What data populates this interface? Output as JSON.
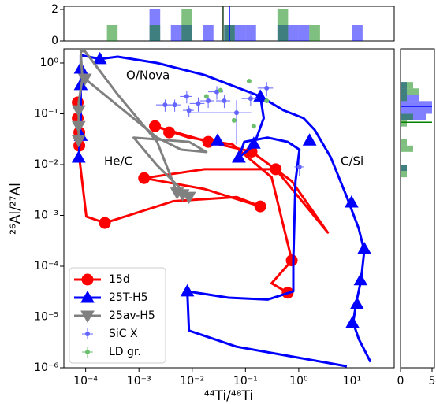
{
  "chart_data": [
    {
      "type": "line",
      "x_label": "⁴⁴Ti/⁴⁸Ti",
      "y_label": "²⁶Al/²⁷Al",
      "log_x": true,
      "log_y": true,
      "xlim": [
        3.9e-05,
        62
      ],
      "ylim": [
        1e-06,
        1.9
      ],
      "xticks": [
        {
          "value": 0.0001,
          "label": "10⁻⁴"
        },
        {
          "value": 0.001,
          "label": "10⁻³"
        },
        {
          "value": 0.01,
          "label": "10⁻²"
        },
        {
          "value": 0.1,
          "label": "10⁻¹"
        },
        {
          "value": 1,
          "label": "10⁰"
        },
        {
          "value": 10,
          "label": "10¹"
        }
      ],
      "yticks": [
        {
          "value": 1e-06,
          "label": "10⁻⁶"
        },
        {
          "value": 1e-05,
          "label": "10⁻⁵"
        },
        {
          "value": 0.0001,
          "label": "10⁻⁴"
        },
        {
          "value": 0.001,
          "label": "10⁻³"
        },
        {
          "value": 0.01,
          "label": "10⁻²"
        },
        {
          "value": 0.1,
          "label": "10⁻¹"
        },
        {
          "value": 1,
          "label": "10⁰"
        }
      ],
      "annotations": [
        "O/Nova",
        "He/C",
        "C/Si"
      ],
      "legend": "lower left",
      "series": [
        {
          "name": "15d",
          "color": "#ff0000",
          "style": "line",
          "marker": "circle",
          "x": [
            7.4e-05,
            7.6e-05,
            0.000103,
            0.00023,
            0.0044,
            0.068,
            0.19,
            0.017,
            0.00125,
            0.017,
            0.37,
            3.5,
            0.74,
            0.13,
            0.02,
            0.002,
            0.0087,
            0.057,
            0.31,
            0.74,
            0.31,
            0.62
          ],
          "values": [
            0.2,
            0.0138,
            0.00095,
            0.00071,
            0.0019,
            0.0023,
            0.0015,
            0.0033,
            0.0054,
            0.0081,
            0.0081,
            0.00046,
            0.0047,
            0.018,
            0.028,
            0.057,
            0.034,
            0.025,
            0.0056,
            0.00013,
            4.6e-05,
            3e-05
          ],
          "marker_x": [
            7.1e-05,
            7.1e-05,
            7.6e-05,
            7.6e-05,
            0.00023,
            0.00125,
            0.002,
            0.0037,
            0.02,
            0.13,
            0.37,
            0.19,
            0.74,
            0.62
          ],
          "marker_values": [
            0.168,
            0.082,
            0.043,
            0.0236,
            0.00071,
            0.0054,
            0.057,
            0.043,
            0.028,
            0.018,
            0.0081,
            0.0015,
            0.00013,
            3e-05
          ]
        },
        {
          "name": "25T-H5",
          "color": "#0000ff",
          "style": "line",
          "marker": "triangle-up",
          "x": [
            7.4e-05,
            8.1e-05,
            8.1e-05,
            0.000185,
            0.0004,
            0.0022,
            0.017,
            0.19,
            0.52,
            1.23,
            2.0,
            4.0,
            8.0,
            13.4,
            17,
            14.8,
            12,
            10.5,
            13.4,
            22.3,
            null,
            0.19,
            0.22,
            0.143,
            0.075,
            0.095,
            0.26,
            0.62,
            1.03,
            0.87,
            0.79,
            0.79,
            0.26,
            0.048,
            0.0081,
            0.0087,
            0.068,
            8.0
          ],
          "values": [
            0.0115,
            0.082,
            1.43,
            1.2,
            1.33,
            1.0,
            0.58,
            0.22,
            0.117,
            0.082,
            0.048,
            0.0138,
            0.0023,
            0.00055,
            0.0002,
            5.4e-05,
            1.9e-05,
            7.7e-06,
            3.7e-06,
            1.3e-06,
            null,
            0.22,
            0.082,
            0.0236,
            0.0138,
            0.028,
            0.034,
            0.028,
            0.0197,
            0.0047,
            0.00013,
            3.2e-05,
            2.2e-05,
            2.4e-05,
            3.2e-05,
            5.4e-06,
            2.6e-06,
            1.07e-06
          ],
          "marker_x": [
            0.000185,
            8.1e-05,
            8.1e-05,
            8.1e-05,
            7.4e-05,
            0.19,
            0.075,
            0.143,
            0.03,
            1.6,
            9.8,
            17,
            14.5,
            12.4,
            10.2,
            0.0081
          ],
          "marker_values": [
            1.2,
            0.78,
            0.37,
            0.037,
            0.0138,
            0.22,
            0.0138,
            0.026,
            0.03,
            0.03,
            0.0018,
            0.00022,
            5.3e-05,
            1.8e-05,
            7.7e-06,
            3.2e-05
          ]
        },
        {
          "name": "25av-H5",
          "color": "#808080",
          "style": "line",
          "marker": "triangle-down",
          "x": [
            7.4e-05,
            7.4e-05,
            8.7e-05,
            8.1e-05,
            9.7e-05,
            0.0004,
            0.0022,
            0.0052,
            0.0087,
            0.0062,
            0.0022,
            0.0008,
            0.0087,
            0.0185,
            0.0062,
            0.0022,
            9.7e-05
          ],
          "values": [
            0.0236,
            0.168,
            0.49,
            1.71,
            1.71,
            0.24,
            0.028,
            0.0028,
            0.0023,
            0.0033,
            0.0096,
            0.034,
            0.028,
            0.0177,
            0.0197,
            0.034,
            0.49
          ],
          "marker_x": [
            9.7e-05,
            7.4e-05,
            7.4e-05,
            7.4e-05,
            0.0052,
            0.0066,
            0.0087
          ],
          "marker_values": [
            0.49,
            0.117,
            0.057,
            0.03,
            0.0028,
            0.0026,
            0.0023
          ]
        },
        {
          "name": "SiC X",
          "color": "#6464ff",
          "style": "errorbar",
          "x": [
            0.0031,
            0.0047,
            0.0079,
            0.0087,
            0.013,
            0.02,
            0.029,
            0.04,
            0.068,
            0.125,
            0.25,
            1.03
          ],
          "values": [
            0.15,
            0.15,
            0.22,
            0.117,
            0.16,
            0.18,
            0.27,
            0.18,
            0.105,
            0.2,
            0.32,
            0.009
          ],
          "xerr": [
            0.001,
            0.0015,
            0.002,
            0.002,
            0.004,
            0.006,
            0.009,
            0.012,
            0.06,
            0.04,
            0.08,
            0.2
          ],
          "yerr": [
            0.04,
            0.04,
            0.06,
            0.03,
            0.05,
            0.05,
            0.08,
            0.05,
            0.08,
            0.06,
            0.1,
            0.003
          ]
        },
        {
          "name": "LD gr.",
          "color": "#6cbf6c",
          "style": "errorbar",
          "x": [
            0.0185,
            0.034,
            0.117,
            0.061,
            0.143,
            0.25
          ],
          "values": [
            0.22,
            0.29,
            0.44,
            0.074,
            0.057,
            0.18
          ]
        }
      ]
    },
    {
      "type": "histogram",
      "orientation": "vertical",
      "log_x": true,
      "xlim": [
        3.9e-05,
        62
      ],
      "ylim": [
        0,
        2.2
      ],
      "yticks": [
        0,
        2
      ],
      "bins": [
        0.000251,
        0.000398,
        0.000631,
        0.001,
        0.00158,
        0.00251,
        0.00398,
        0.00631,
        0.01,
        0.0158,
        0.0251,
        0.0398,
        0.0631,
        0.1,
        0.158,
        0.251,
        0.398,
        0.631,
        1,
        1.58,
        2.51,
        3.98,
        6.31,
        10,
        15.8
      ],
      "series": [
        {
          "color": "rgba(0,0,255,0.5)",
          "values": [
            0,
            0,
            0,
            0,
            2,
            0,
            1,
            1,
            0,
            1,
            0,
            1,
            1,
            1,
            0,
            0,
            1,
            1,
            1,
            0,
            0,
            0,
            0,
            1
          ]
        },
        {
          "color": "rgba(0,128,0,0.5)",
          "values": [
            1,
            0,
            0,
            0,
            1,
            0,
            0,
            2,
            0,
            0,
            0,
            1,
            0,
            0,
            0,
            0,
            2,
            0,
            0,
            1,
            0,
            0,
            0,
            0
          ]
        }
      ],
      "lines": [
        {
          "value": 0.038,
          "color": "#1a4020"
        },
        {
          "value": 0.05,
          "color": "#0000ff"
        }
      ]
    },
    {
      "type": "histogram",
      "orientation": "horizontal",
      "log_y": true,
      "ylim": [
        1e-06,
        1.9
      ],
      "xlim": [
        0,
        5
      ],
      "xticks": [
        0,
        5
      ],
      "bins": [
        0.00562,
        0.0075,
        0.01,
        0.0133,
        0.0178,
        0.0237,
        0.0316,
        0.0422,
        0.0562,
        0.075,
        0.1,
        0.133,
        0.178,
        0.237,
        0.316,
        0.422,
        0.562
      ],
      "series": [
        {
          "color": "rgba(0,0,255,0.5)",
          "values": [
            0,
            1,
            0,
            0,
            0,
            0,
            0,
            0,
            0,
            4,
            5,
            5,
            3,
            1,
            1,
            0
          ]
        },
        {
          "color": "rgba(0,128,0,0.5)",
          "values": [
            1,
            1,
            0,
            0,
            2,
            1,
            0,
            0,
            1,
            2,
            0,
            0,
            1,
            3,
            2,
            0
          ]
        }
      ],
      "lines": [
        {
          "value": 0.14,
          "color": "#0000ff"
        },
        {
          "value": 0.068,
          "color": "#008000"
        }
      ]
    }
  ]
}
